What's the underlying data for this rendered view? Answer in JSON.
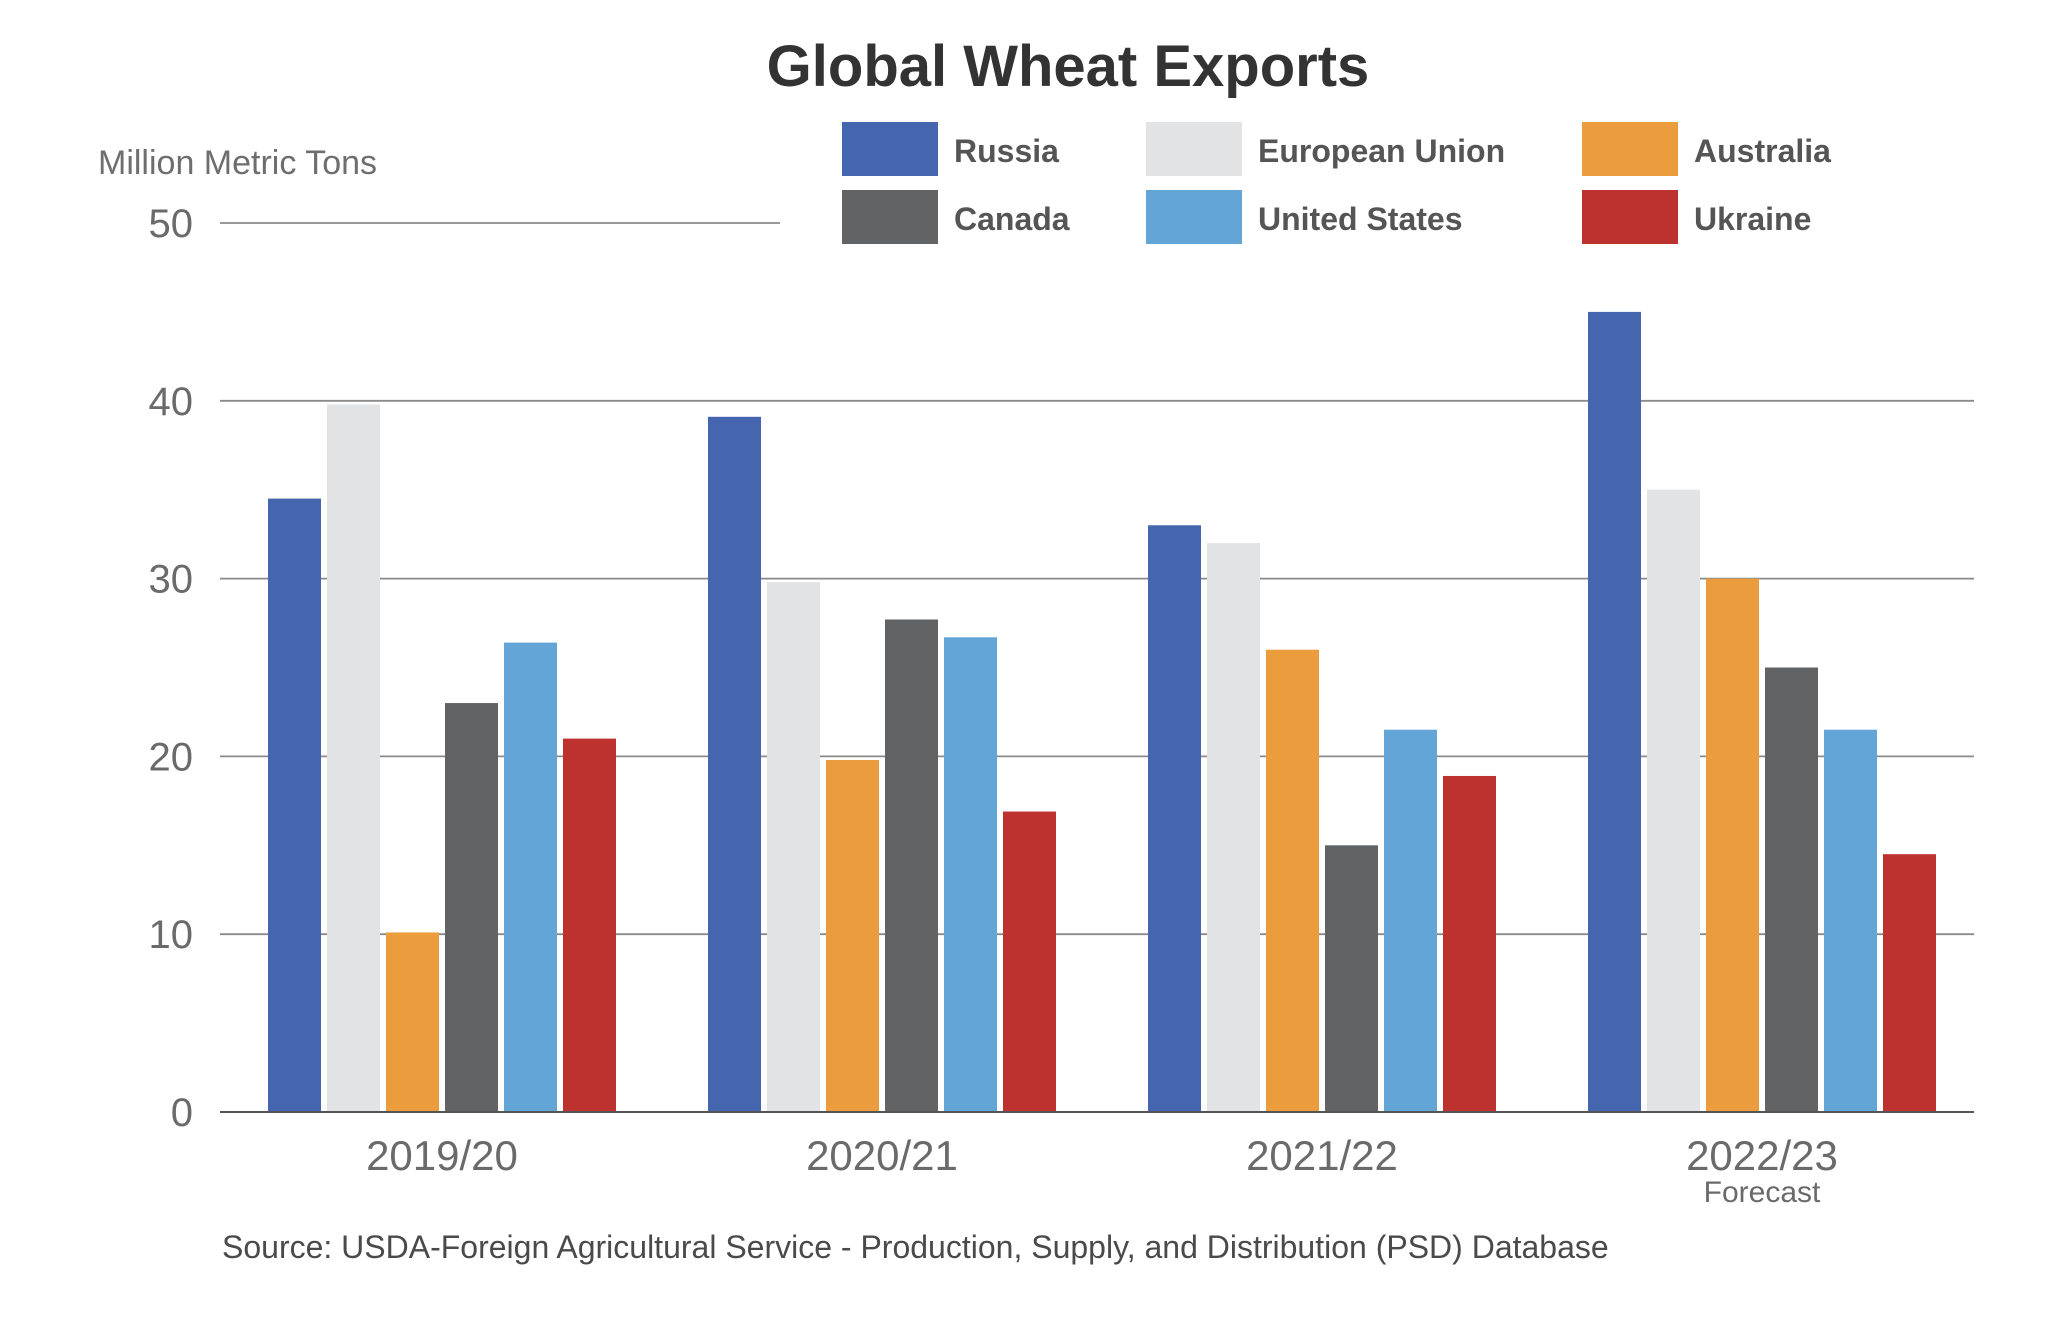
{
  "chart_data": {
    "type": "bar",
    "title": "Global Wheat Exports",
    "ylabel": "Million Metric Tons",
    "xlabel": "",
    "ylim": [
      0,
      50
    ],
    "yticks": [
      0,
      10,
      20,
      30,
      40,
      50
    ],
    "grid": true,
    "legend_position": "top-right",
    "categories": [
      "2019/20",
      "2020/21",
      "2021/22",
      "2022/23"
    ],
    "category_sublabels": [
      "",
      "",
      "",
      "Forecast"
    ],
    "series": [
      {
        "name": "Russia",
        "color": "#4566ae",
        "values": [
          34.5,
          39.1,
          33.0,
          45.0
        ]
      },
      {
        "name": "European Union",
        "color": "#e2e3e5",
        "values": [
          39.8,
          29.8,
          32.0,
          35.0
        ]
      },
      {
        "name": "Australia",
        "color": "#eb9c3c",
        "values": [
          10.1,
          19.8,
          26.0,
          30.0
        ]
      },
      {
        "name": "Canada",
        "color": "#626365",
        "values": [
          23.0,
          27.7,
          15.0,
          25.0
        ]
      },
      {
        "name": "United States",
        "color": "#62a5d6",
        "values": [
          26.4,
          26.7,
          21.5,
          21.5
        ]
      },
      {
        "name": "Ukraine",
        "color": "#bd312e",
        "values": [
          21.0,
          16.9,
          18.9,
          14.5
        ]
      }
    ],
    "legend_order": [
      "Russia",
      "European Union",
      "Australia",
      "Canada",
      "United States",
      "Ukraine"
    ],
    "source": "Source: USDA-Foreign Agricultural Service - Production, Supply, and Distribution (PSD) Database"
  }
}
